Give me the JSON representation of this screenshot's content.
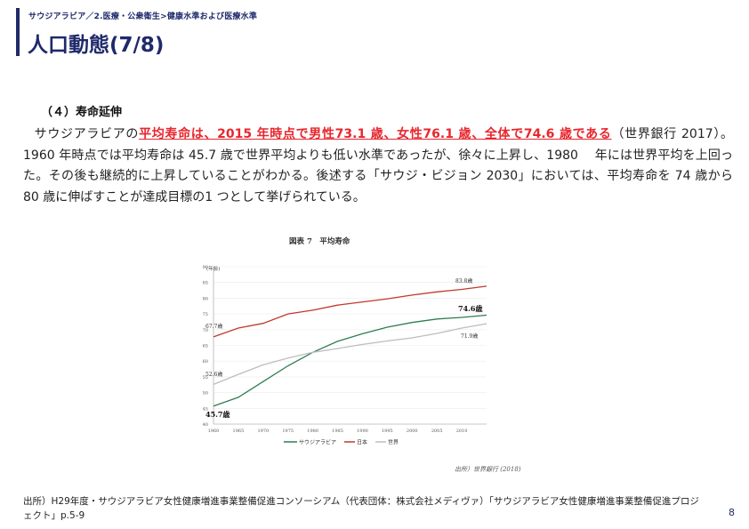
{
  "header": {
    "breadcrumb": "サウジアラビア／2.医療・公衆衛生>健康水準および医療水準",
    "title": "人口動態(7/8)"
  },
  "section": {
    "heading": "（４）寿命延伸",
    "text_intro": "サウジアラビアの",
    "text_highlight": "平均寿命は、2015 年時点で男性73.1 歳、女性76.1 歳、全体で74.6 歳である",
    "text_rest": "（世界銀行 2017）。1960 年時点では平均寿命は 45.7 歳で世界平均よりも低い水準であったが、徐々に上昇し、1980　 年には世界平均を上回った。その後も継続的に上昇していることがわかる。後述する「サウジ・ビジョン 2030」においては、平均寿命を 74 歳から 80 歳に伸ばすことが達成目標の1 つとして挙げられている。"
  },
  "chart_data": {
    "type": "line",
    "title": "図表 7　平均寿命",
    "ylabel": "(年齢)",
    "ylim": [
      40,
      90
    ],
    "xlim": [
      1960,
      2015
    ],
    "yticks": [
      "40",
      "45",
      "50",
      "55",
      "60",
      "65",
      "70",
      "75",
      "80",
      "85",
      "90"
    ],
    "xticks": [
      "1960",
      "1965",
      "1970",
      "1975",
      "1980",
      "1985",
      "1990",
      "1995",
      "2000",
      "2005",
      "2010"
    ],
    "x": [
      1960,
      1965,
      1970,
      1975,
      1980,
      1985,
      1990,
      1995,
      2000,
      2005,
      2010,
      2015
    ],
    "series": [
      {
        "name": "サウジアラビア",
        "color": "#2e7d4f",
        "values": [
          45.7,
          48.5,
          53.5,
          58.5,
          62.8,
          66.3,
          68.7,
          70.8,
          72.3,
          73.4,
          73.9,
          74.6
        ]
      },
      {
        "name": "日本",
        "color": "#c0392b",
        "values": [
          67.7,
          70.5,
          72.0,
          75.0,
          76.2,
          77.8,
          78.8,
          79.8,
          81.0,
          82.0,
          82.8,
          83.8
        ]
      },
      {
        "name": "世界",
        "color": "#bdbdbd",
        "values": [
          52.6,
          55.8,
          58.8,
          61.0,
          62.8,
          64.0,
          65.3,
          66.4,
          67.4,
          68.8,
          70.5,
          71.9
        ]
      }
    ],
    "annotations": {
      "japan_end": "83.8歳",
      "saudi_end": "74.6歳",
      "world_end": "71.9歳",
      "japan_start": "67.7歳",
      "world_start": "52.6歳",
      "saudi_start": "45.7歳"
    },
    "source_note": "出所）世界銀行 (2018)",
    "legend_position": "bottom"
  },
  "footer": {
    "source": "出所）H29年度・サウジアラビア女性健康増進事業整備促進コンソーシアム（代表団体：株式会社メディヴァ）「サウジアラビア女性健康増進事業整備促進プロジェクト」p.5-9",
    "page_number": "8"
  }
}
